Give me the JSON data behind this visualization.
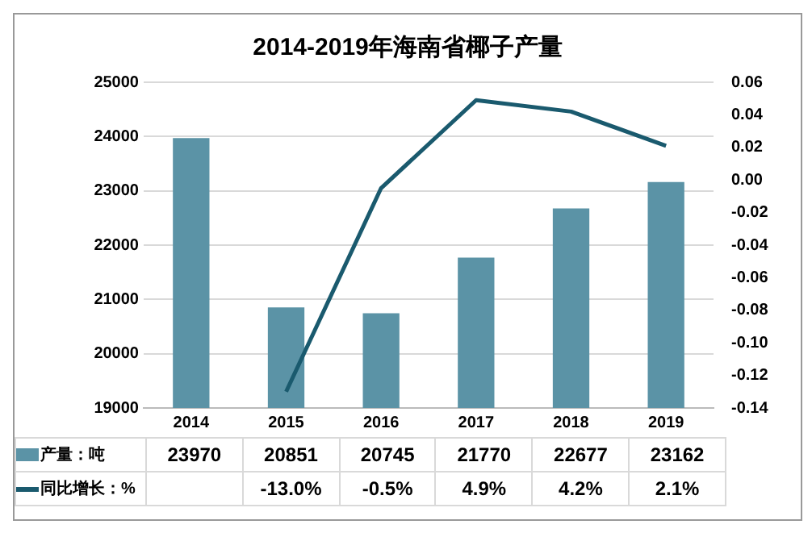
{
  "chart_data": {
    "type": "bar",
    "title": "2014-2019年海南省椰子产量",
    "categories": [
      "2014",
      "2015",
      "2016",
      "2017",
      "2018",
      "2019"
    ],
    "series": [
      {
        "name": "产量：吨",
        "color": "#5b93a6",
        "values": [
          23970,
          20851,
          20745,
          21770,
          22677,
          23162
        ],
        "value_labels": [
          "23970",
          "20851",
          "20745",
          "21770",
          "22677",
          "23162"
        ]
      },
      {
        "name": "同比增长：%",
        "type": "line",
        "axis": "y2",
        "color": "#1a5a6e",
        "values": [
          null,
          -0.13,
          -0.005,
          0.049,
          0.042,
          0.021
        ],
        "value_labels": [
          null,
          "-13.0%",
          "-0.5%",
          "4.9%",
          "4.2%",
          "2.1%"
        ]
      }
    ],
    "ylim": [
      19000,
      25000
    ],
    "yticks": [
      19000,
      20000,
      21000,
      22000,
      23000,
      24000,
      25000
    ],
    "y2lim": [
      -0.14,
      0.06
    ],
    "y2ticks": [
      {
        "value": -0.14,
        "label": "-0.14"
      },
      {
        "value": -0.12,
        "label": "-0.12"
      },
      {
        "value": -0.1,
        "label": "-0.10"
      },
      {
        "value": -0.08,
        "label": "-0.08"
      },
      {
        "value": -0.06,
        "label": "-0.06"
      },
      {
        "value": -0.04,
        "label": "-0.04"
      },
      {
        "value": -0.02,
        "label": "-0.02"
      },
      {
        "value": 0,
        "label": "0.00"
      },
      {
        "value": 0.02,
        "label": "0.02"
      },
      {
        "value": 0.04,
        "label": "0.04"
      },
      {
        "value": 0.06,
        "label": "0.06"
      }
    ],
    "grid": "y",
    "legend": "bottom",
    "marker": "none",
    "line_style": "solid"
  }
}
